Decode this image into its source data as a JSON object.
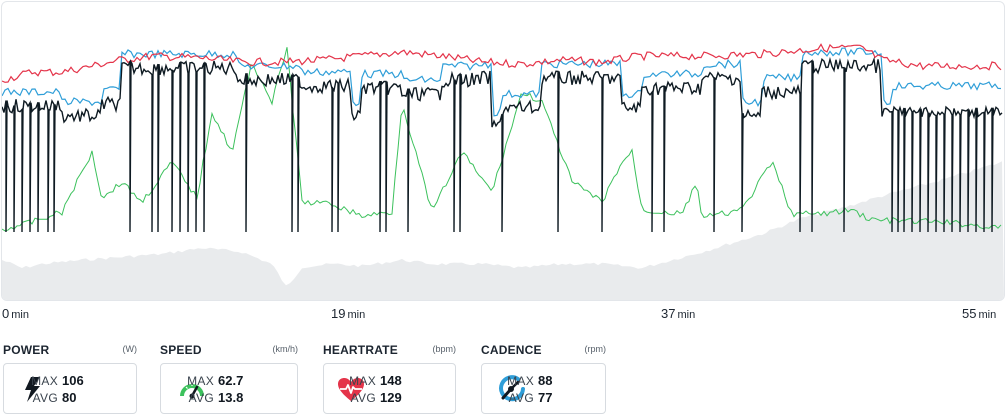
{
  "chart": {
    "time_ticks": [
      {
        "value": "0",
        "unit": "min"
      },
      {
        "value": "19",
        "unit": "min"
      },
      {
        "value": "37",
        "unit": "min"
      },
      {
        "value": "55",
        "unit": "min"
      }
    ],
    "colors": {
      "heartrate": "#e4344a",
      "speed": "#2f9ed8",
      "power": "#0e1a22",
      "cadence": "#3cc15c",
      "elevation": "#e9ebed"
    }
  },
  "stats": [
    {
      "key": "power",
      "name": "POWER",
      "unit": "(W)",
      "icon": "lightning-bolt-icon",
      "max_label": "MAX",
      "max": "106",
      "avg_label": "AVG",
      "avg": "80"
    },
    {
      "key": "speed",
      "name": "SPEED",
      "unit": "(km/h)",
      "icon": "speedometer-icon",
      "max_label": "MAX",
      "max": "62.7",
      "avg_label": "AVG",
      "avg": "13.8"
    },
    {
      "key": "heartrate",
      "name": "HEARTRATE",
      "unit": "(bpm)",
      "icon": "heart-pulse-icon",
      "max_label": "MAX",
      "max": "148",
      "avg_label": "AVG",
      "avg": "129"
    },
    {
      "key": "cadence",
      "name": "CADENCE",
      "unit": "(rpm)",
      "icon": "cadence-icon",
      "max_label": "MAX",
      "max": "88",
      "avg_label": "AVG",
      "avg": "77"
    }
  ]
}
